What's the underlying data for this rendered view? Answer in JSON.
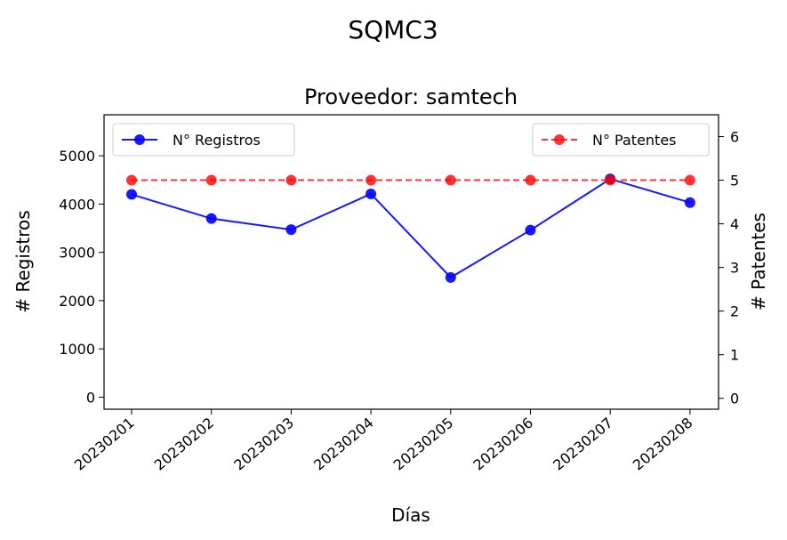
{
  "chart_data": {
    "type": "line",
    "suptitle": "SQMC3",
    "title": "Proveedor: samtech",
    "xlabel": "Días",
    "ylabel": "# Registros",
    "y2label": "# Patentes",
    "categories": [
      "20230201",
      "20230202",
      "20230203",
      "20230204",
      "20230205",
      "20230206",
      "20230207",
      "20230208"
    ],
    "ylim": [
      -250,
      5850
    ],
    "yticks": [
      "0",
      "1000",
      "2000",
      "3000",
      "4000",
      "5000"
    ],
    "y2lim": [
      -0.25,
      6.5
    ],
    "y2ticks": [
      "0",
      "1",
      "2",
      "3",
      "4",
      "5",
      "6"
    ],
    "series": [
      {
        "name": "N° Registros",
        "axis": "left",
        "color": "#0000ff",
        "style": "solid",
        "values": [
          4200,
          3700,
          3470,
          4210,
          2480,
          3460,
          4520,
          4030
        ]
      },
      {
        "name": "N° Patentes",
        "axis": "right",
        "color": "#ff0000",
        "style": "dashed",
        "values": [
          5,
          5,
          5,
          5,
          5,
          5,
          5,
          5
        ]
      }
    ],
    "legend_left": "upper-left",
    "legend_right": "upper-right",
    "grid": false
  }
}
